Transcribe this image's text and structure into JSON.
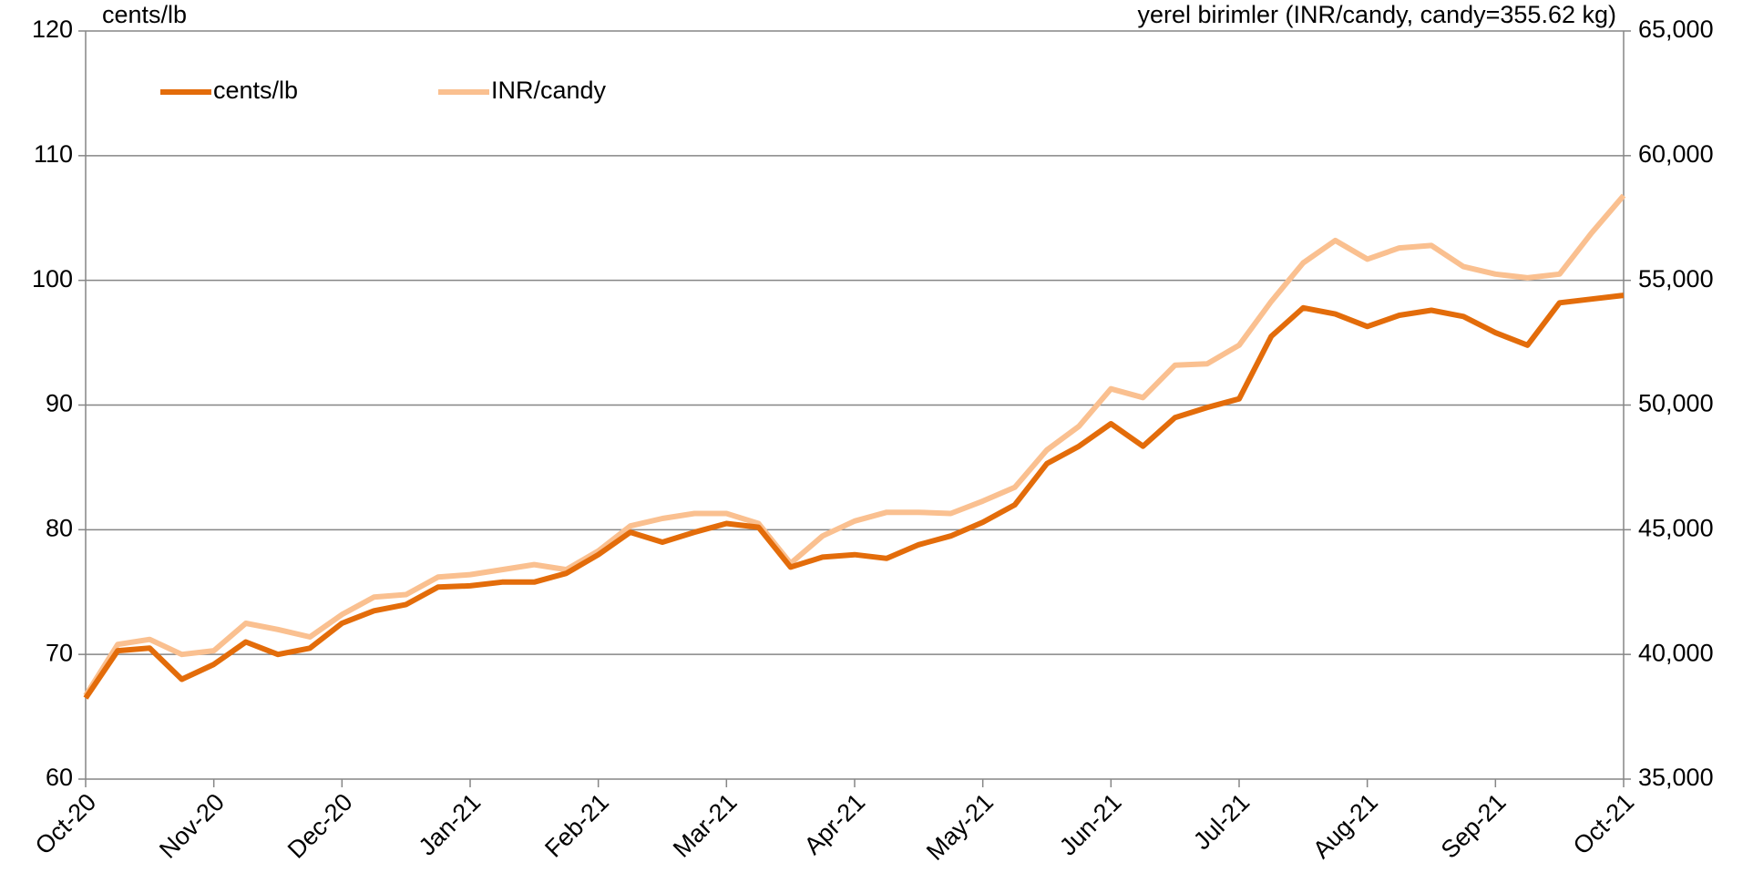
{
  "chart_data": {
    "type": "line",
    "y_label": "cents/lb",
    "y2_label": "yerel birimler (INR/candy, candy=355.62 kg)",
    "categories": [
      "Oct-20",
      null,
      null,
      null,
      "Nov-20",
      null,
      null,
      null,
      "Dec-20",
      null,
      null,
      null,
      "Jan-21",
      null,
      null,
      null,
      "Feb-21",
      null,
      null,
      null,
      "Mar-21",
      null,
      null,
      null,
      "Apr-21",
      null,
      null,
      null,
      "May-21",
      null,
      null,
      null,
      "Jun-21",
      null,
      null,
      null,
      "Jul-21",
      null,
      null,
      null,
      "Aug-21",
      null,
      null,
      null,
      "Sep-21",
      null,
      null,
      null,
      "Oct-21"
    ],
    "series": [
      {
        "name": "cents/lb",
        "color": "#e36c0a",
        "axis": "y",
        "values": [
          66.5,
          70.3,
          70.5,
          68,
          69.2,
          71,
          70,
          70.5,
          72.5,
          73.5,
          74,
          75.4,
          75.5,
          75.8,
          75.8,
          76.5,
          78,
          79.8,
          79,
          79.8,
          80.5,
          80.2,
          77,
          77.8,
          78,
          77.7,
          78.8,
          79.5,
          80.6,
          82,
          85.3,
          86.7,
          88.5,
          86.7,
          89,
          89.8,
          90.5,
          95.5,
          97.8,
          97.3,
          96.3,
          97.2,
          97.6,
          97.1,
          95.8,
          94.8,
          98.2,
          98.5,
          98.8
        ]
      },
      {
        "name": "INR/candy",
        "color": "#fac090",
        "axis": "y2",
        "values": [
          38350,
          40400,
          40600,
          40000,
          40150,
          41250,
          41000,
          40700,
          41600,
          42300,
          42400,
          43100,
          43200,
          43400,
          43600,
          43400,
          44150,
          45150,
          45450,
          45650,
          45650,
          45250,
          43650,
          44750,
          45350,
          45700,
          45700,
          45650,
          46150,
          46700,
          48200,
          49150,
          50650,
          50300,
          51600,
          51650,
          52400,
          54150,
          55700,
          56600,
          55850,
          56300,
          56400,
          55550,
          55250,
          55100,
          55250,
          56900,
          58400
        ]
      }
    ],
    "ylim": [
      60,
      120
    ],
    "yticks": [
      60,
      70,
      80,
      90,
      100,
      110,
      120
    ],
    "y2lim": [
      35000,
      65000
    ],
    "y2ticks": [
      {
        "value": 35000,
        "label": "35,000"
      },
      {
        "value": 40000,
        "label": "40,000"
      },
      {
        "value": 45000,
        "label": "45,000"
      },
      {
        "value": 50000,
        "label": "50,000"
      },
      {
        "value": 55000,
        "label": "55,000"
      },
      {
        "value": 60000,
        "label": "60,000"
      },
      {
        "value": 65000,
        "label": "65,000"
      }
    ],
    "grid": true,
    "legend": "top-left"
  }
}
